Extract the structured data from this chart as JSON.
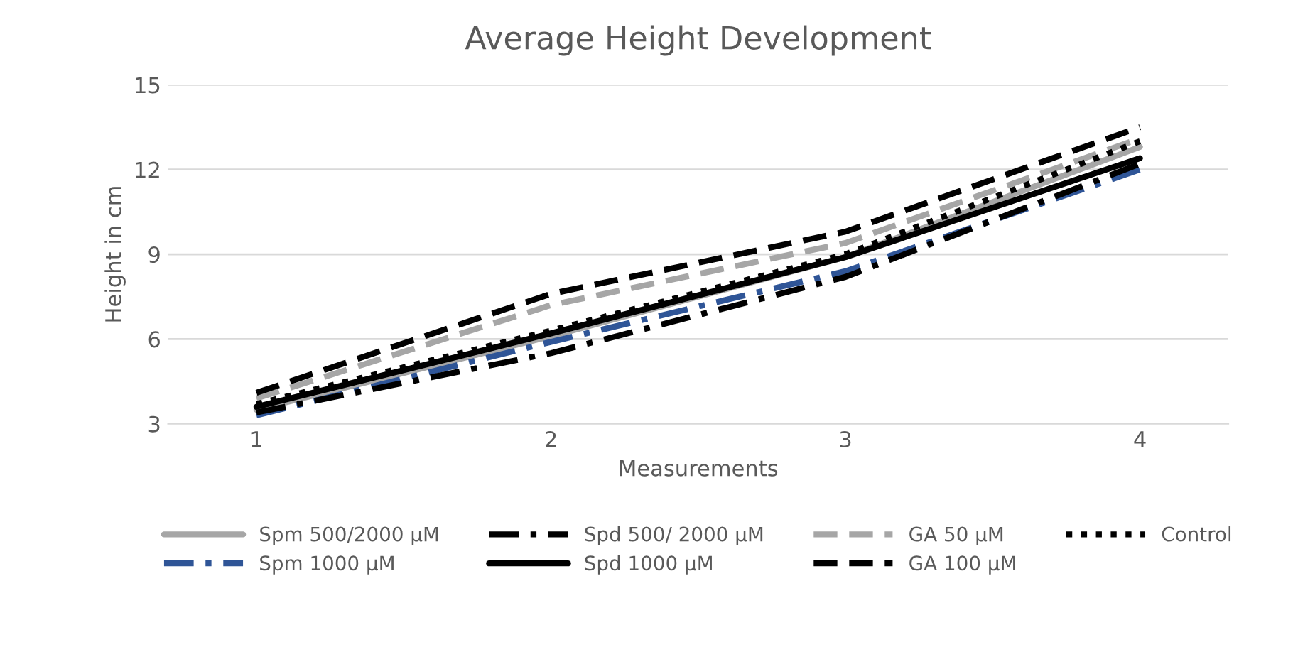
{
  "chart_data": {
    "type": "line",
    "title": "Average Height Development",
    "xlabel": "Measurements",
    "ylabel": "Height in cm",
    "categories": [
      "1",
      "2",
      "3",
      "4"
    ],
    "series": [
      {
        "name": "Spm 500/2000 µM",
        "color": "#a6a6a6",
        "line_style": "solid",
        "values": [
          3.5,
          6.1,
          8.9,
          12.8
        ]
      },
      {
        "name": "Spm 1000 µM",
        "color": "#2f5597",
        "line_style": "dashdot",
        "values": [
          3.3,
          5.9,
          8.4,
          12.0
        ]
      },
      {
        "name": "Spd 500/ 2000 µM",
        "color": "#000000",
        "line_style": "dashdot",
        "values": [
          3.4,
          5.5,
          8.2,
          12.2
        ]
      },
      {
        "name": "Spd 1000 µM",
        "color": "#000000",
        "line_style": "solid",
        "values": [
          3.6,
          6.2,
          8.9,
          12.4
        ]
      },
      {
        "name": "GA 50 µM",
        "color": "#a6a6a6",
        "line_style": "dashed",
        "values": [
          3.9,
          7.2,
          9.4,
          13.1
        ]
      },
      {
        "name": "GA 100 µM",
        "color": "#000000",
        "line_style": "dashed",
        "values": [
          4.1,
          7.6,
          9.8,
          13.5
        ]
      },
      {
        "name": "Control",
        "color": "#000000",
        "line_style": "dotted",
        "values": [
          3.7,
          6.3,
          9.0,
          13.0
        ]
      }
    ],
    "ylim": [
      3,
      15
    ],
    "yticks": [
      3,
      6,
      9,
      12,
      15
    ],
    "grid": "y",
    "legend": "bottom"
  }
}
